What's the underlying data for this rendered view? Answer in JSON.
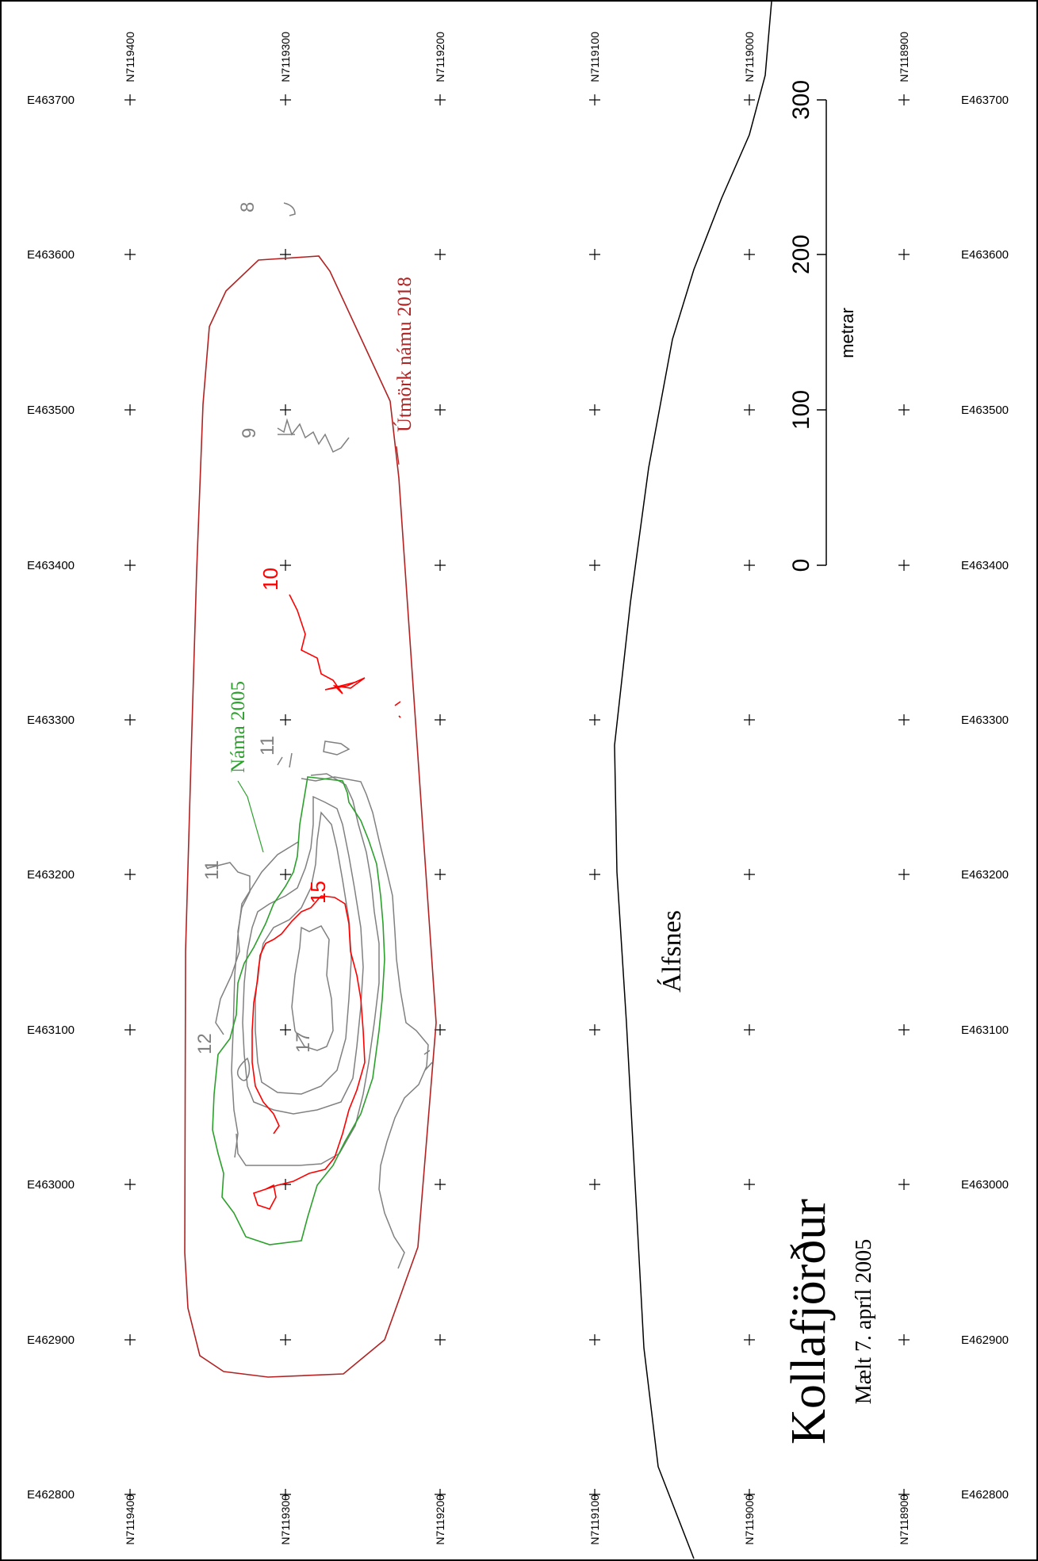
{
  "grid": {
    "easting_labels": [
      "E463700",
      "E463600",
      "E463500",
      "E463400",
      "E463300",
      "E463200",
      "E463100",
      "E463000",
      "E462900",
      "E462800"
    ],
    "northing_labels_top": [
      "N7119400",
      "N7119300",
      "N7119200",
      "N7119100",
      "N7119000",
      "N7118900"
    ],
    "northing_labels_bottom": [
      "N7119400",
      "N7119300",
      "N7119200",
      "N7119100",
      "N7119000",
      "N7118900"
    ]
  },
  "scale_bar": {
    "ticks": [
      "0",
      "100",
      "200",
      "300"
    ],
    "unit": "metrar"
  },
  "labels": {
    "boundary_2018": "Útmörk námu 2018",
    "pit_2005": "Náma 2005",
    "land": "Álfsnes",
    "title": "Kollafjörður",
    "subtitle": "Mælt 7. apríl 2005"
  },
  "contours": {
    "gray_labels": [
      "8",
      "9",
      "11",
      "11",
      "12",
      "17"
    ],
    "red_labels": [
      "10",
      "15"
    ]
  },
  "colors": {
    "boundary": "#b22222",
    "pit": "#2ca02c",
    "contour_gray": "#808080",
    "contour_red": "#ff0000",
    "shoreline": "#000000"
  }
}
